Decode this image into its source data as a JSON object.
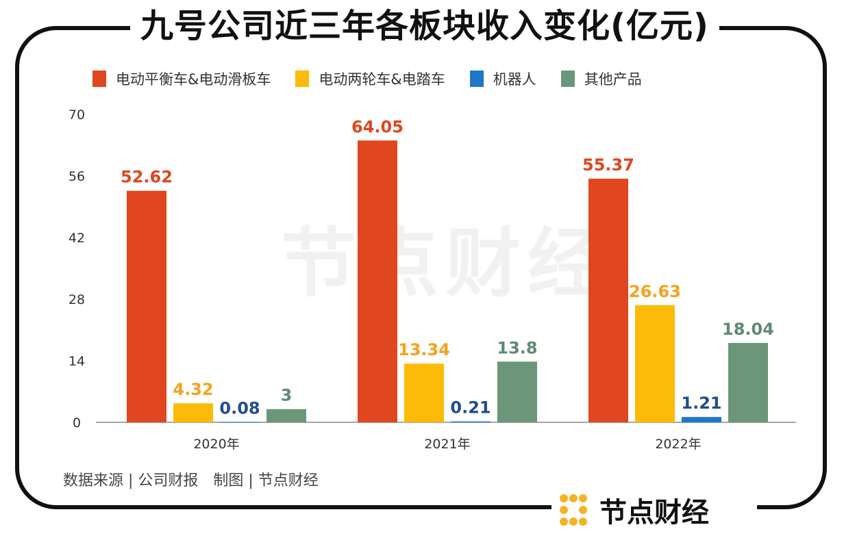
{
  "watermark": "节点财经",
  "footer": {
    "source": "数据来源 | 公司财报　制图 | 节点财经",
    "logo_text": "节点财经"
  },
  "colors": {
    "series": [
      "#E0461F",
      "#FDBA08",
      "#1F77C8",
      "#6B967A"
    ],
    "labels": [
      "#E0461F",
      "#F5A21B",
      "#1F4E8C",
      "#5F8A74"
    ]
  },
  "chart_data": {
    "type": "bar",
    "title": "九号公司近三年各板块收入变化(亿元)",
    "categories": [
      "2020年",
      "2021年",
      "2022年"
    ],
    "series": [
      {
        "name": "电动平衡车&电动滑板车",
        "values": [
          52.62,
          64.05,
          55.37
        ],
        "labels": [
          "52.62",
          "64.05",
          "55.37"
        ]
      },
      {
        "name": "电动两轮车&电踏车",
        "values": [
          4.32,
          13.34,
          26.63
        ],
        "labels": [
          "4.32",
          "13.34",
          "26.63"
        ]
      },
      {
        "name": "机器人",
        "values": [
          0.08,
          0.21,
          1.21
        ],
        "labels": [
          "0.08",
          "0.21",
          "1.21"
        ]
      },
      {
        "name": "其他产品",
        "values": [
          3,
          13.8,
          18.04
        ],
        "labels": [
          "3",
          "13.8",
          "18.04"
        ]
      }
    ],
    "yticks": [
      "0",
      "14",
      "28",
      "42",
      "56",
      "70"
    ],
    "ylim": [
      0,
      70
    ],
    "grid": false,
    "legend": "top"
  }
}
